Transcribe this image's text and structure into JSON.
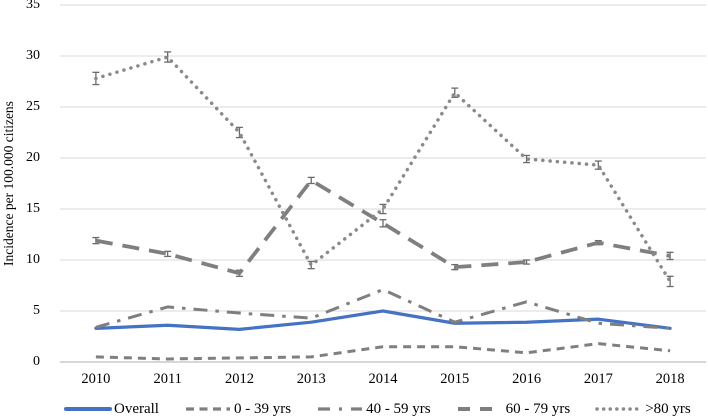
{
  "chart_data": {
    "type": "line",
    "title": "",
    "xlabel": "",
    "ylabel": "Incidence per 100.000 citizens",
    "x": [
      "2010",
      "2011",
      "2012",
      "2013",
      "2014",
      "2015",
      "2016",
      "2017",
      "2018"
    ],
    "ylim": [
      0,
      35
    ],
    "yticks": [
      0,
      5,
      10,
      15,
      20,
      25,
      30,
      35
    ],
    "grid": "horizontal",
    "legend_position": "bottom",
    "series": [
      {
        "label": "Overall",
        "dash": "solid",
        "color": "#4472C4",
        "values": [
          3.3,
          3.6,
          3.2,
          3.9,
          5.0,
          3.8,
          3.9,
          4.2,
          3.3
        ]
      },
      {
        "label": "0 - 39 yrs",
        "dash": "dash",
        "color": "#7F7F7F",
        "values": [
          0.5,
          0.3,
          0.4,
          0.5,
          1.5,
          1.5,
          0.9,
          1.8,
          1.1
        ]
      },
      {
        "label": "40 - 59 yrs",
        "dash": "dashdot",
        "color": "#7F7F7F",
        "values": [
          3.4,
          5.4,
          4.8,
          4.3,
          7.1,
          3.9,
          5.9,
          3.8,
          3.3
        ]
      },
      {
        "label": "60 - 79 yrs",
        "dash": "longdash",
        "color": "#7F7F7F",
        "values": [
          11.9,
          10.6,
          8.7,
          17.8,
          13.6,
          9.3,
          9.8,
          11.7,
          10.4
        ],
        "errors": [
          0.3,
          0.25,
          0.3,
          0.3,
          0.35,
          0.25,
          0.2,
          0.2,
          0.35
        ]
      },
      {
        "label": ">80 yrs",
        "dash": "dot",
        "color": "#8A8A8A",
        "values": [
          27.8,
          29.9,
          22.5,
          9.5,
          15.0,
          26.4,
          19.9,
          19.3,
          7.9
        ],
        "errors": [
          0.6,
          0.5,
          0.5,
          0.35,
          0.45,
          0.45,
          0.35,
          0.4,
          0.5
        ]
      }
    ],
    "colors": {
      "grid": "#D9D9D9",
      "axis": "#BFBFBF",
      "error_bar": "#6B6B6B",
      "text": "#000000",
      "background": "#FFFFFF"
    }
  }
}
